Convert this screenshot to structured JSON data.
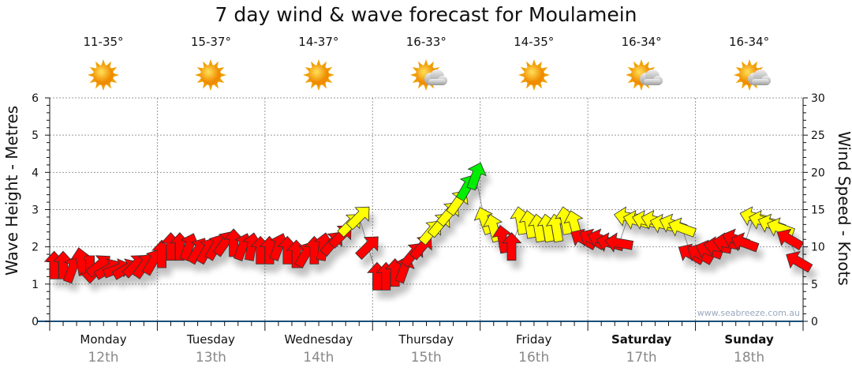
{
  "title": "7 day wind & wave forecast for Moulamein",
  "watermark": "www.seabreeze.com.au",
  "days": [
    {
      "weekday": "Monday",
      "date": "12th",
      "temp": "11-35°",
      "icon": "sun-icon",
      "bold": false
    },
    {
      "weekday": "Tuesday",
      "date": "13th",
      "temp": "15-37°",
      "icon": "sun-icon",
      "bold": false
    },
    {
      "weekday": "Wednesday",
      "date": "14th",
      "temp": "14-37°",
      "icon": "sun-icon",
      "bold": false
    },
    {
      "weekday": "Thursday",
      "date": "15th",
      "temp": "16-33°",
      "icon": "sun-cloud-icon",
      "bold": false
    },
    {
      "weekday": "Friday",
      "date": "16th",
      "temp": "14-35°",
      "icon": "sun-icon",
      "bold": false
    },
    {
      "weekday": "Saturday",
      "date": "17th",
      "temp": "16-34°",
      "icon": "sun-cloud-icon",
      "bold": true
    },
    {
      "weekday": "Sunday",
      "date": "18th",
      "temp": "16-34°",
      "icon": "sun-cloud-icon",
      "bold": true
    }
  ],
  "chart_data": {
    "type": "scatter",
    "title": "7 day wind & wave forecast for Moulamein",
    "ylabel_left": "Wave Height - Metres",
    "ylabel_right": "Wind Speed - Knots",
    "ylim_left": [
      0,
      6
    ],
    "yticks_left": [
      "0",
      "1",
      "2",
      "3",
      "4",
      "5",
      "6"
    ],
    "ylim_right": [
      0,
      30
    ],
    "yticks_right": [
      "0",
      "5",
      "10",
      "15",
      "20",
      "25",
      "30"
    ],
    "interval_hours": 2,
    "wind_knots": [
      7.5,
      7.5,
      7,
      8,
      7,
      7.5,
      7,
      7,
      7,
      7.5,
      7.5,
      8,
      9,
      10,
      10,
      10,
      9.5,
      9.5,
      10,
      10.5,
      10.5,
      10,
      10,
      9.5,
      9.5,
      10,
      9.5,
      9,
      9,
      9.5,
      10,
      10.5,
      11.5,
      13,
      14,
      10,
      6,
      6,
      6.5,
      7,
      9,
      10,
      12,
      13,
      14.5,
      16,
      18,
      19.5,
      13.5,
      12.5,
      11,
      10,
      13.5,
      13,
      12.5,
      12.5,
      12.5,
      13.5,
      13,
      11,
      11,
      11,
      10.5,
      10.5,
      14,
      13.5,
      13.5,
      13.5,
      13,
      13,
      12.5,
      9,
      9,
      9.5,
      10,
      10.5,
      11,
      10.5,
      14,
      13.5,
      13,
      12.5,
      11,
      8
    ],
    "wind_dir_deg": [
      0,
      0,
      20,
      -10,
      180,
      50,
      60,
      70,
      60,
      45,
      35,
      30,
      0,
      0,
      0,
      20,
      30,
      30,
      30,
      35,
      0,
      20,
      10,
      0,
      0,
      20,
      0,
      0,
      30,
      0,
      10,
      40,
      45,
      45,
      45,
      45,
      0,
      0,
      0,
      20,
      40,
      40,
      40,
      40,
      40,
      35,
      30,
      20,
      -20,
      -15,
      -10,
      0,
      -10,
      -10,
      -10,
      -10,
      -10,
      -10,
      -15,
      -60,
      -60,
      -70,
      -75,
      -80,
      -80,
      -75,
      -75,
      -75,
      -75,
      -70,
      -70,
      -60,
      -60,
      -70,
      -80,
      -80,
      -70,
      -70,
      -75,
      -75,
      -70,
      -70,
      -60,
      -60
    ],
    "color_scale": {
      "calm": "#ff0000",
      "moderate": "#ffff00",
      "strong": "#00ee00"
    },
    "thresholds_knots": [
      12,
      18
    ]
  }
}
